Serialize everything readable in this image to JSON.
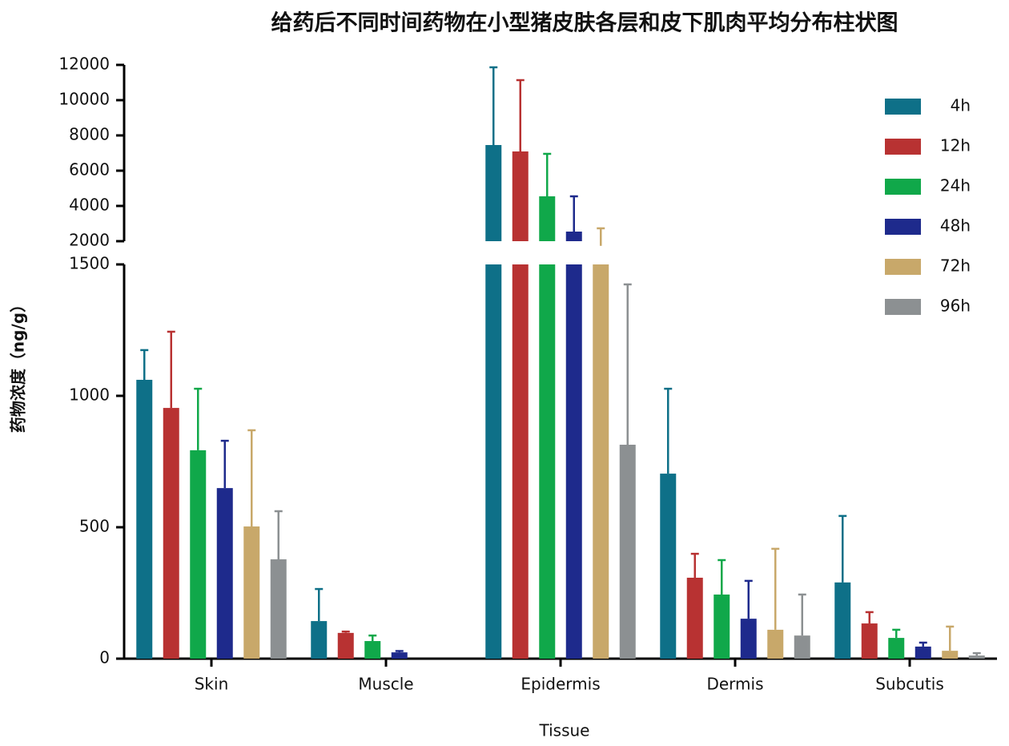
{
  "chart_data": {
    "type": "bar",
    "title": "给药后不同时间药物在小型猪皮肤各层和皮下肌肉平均分布柱状图",
    "x_label": "Tissue",
    "y_label": "药物浓度（ng/g）",
    "categories": [
      "Skin",
      "Muscle",
      "Epidermis",
      "Dermis",
      "Subcutis"
    ],
    "series": [
      {
        "name": "4h",
        "color": "#0e7088",
        "values": [
          1061,
          143,
          7455,
          704,
          290
        ],
        "errors": [
          113,
          122,
          4409,
          323,
          253
        ]
      },
      {
        "name": "12h",
        "color": "#b83232",
        "values": [
          954,
          98,
          7091,
          308,
          134
        ],
        "errors": [
          290,
          5,
          4045,
          91,
          43
        ]
      },
      {
        "name": "24h",
        "color": "#10a84a",
        "values": [
          793,
          67,
          4545,
          244,
          79
        ],
        "errors": [
          234,
          21,
          2410,
          131,
          31
        ]
      },
      {
        "name": "48h",
        "color": "#1e2a8c",
        "values": [
          649,
          24,
          2545,
          152,
          46
        ],
        "errors": [
          180,
          5,
          2000,
          144,
          15
        ]
      },
      {
        "name": "72h",
        "color": "#c8a86a",
        "values": [
          503,
          0,
          1900,
          110,
          30
        ],
        "errors": [
          366,
          0,
          830,
          308,
          92
        ]
      },
      {
        "name": "96h",
        "color": "#8c9092",
        "values": [
          378,
          0,
          814,
          88,
          12
        ],
        "errors": [
          183,
          0,
          610,
          156,
          9
        ]
      }
    ],
    "ylim": [
      0,
      12000
    ],
    "axis_break": [
      1500,
      2000
    ],
    "yticks": [
      0,
      500,
      1000,
      1500,
      2000,
      4000,
      6000,
      8000,
      10000,
      12000
    ],
    "legend": "upper right",
    "grid": false
  }
}
